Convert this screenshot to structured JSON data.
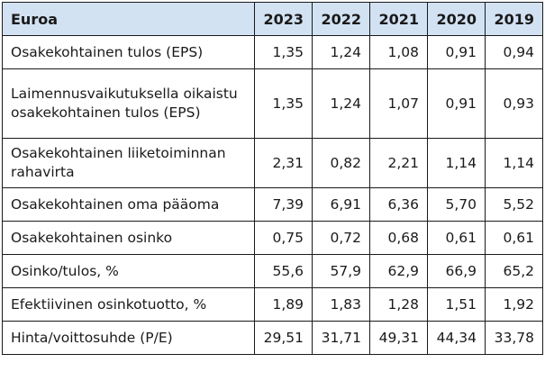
{
  "table": {
    "header": {
      "label": "Euroa",
      "years": [
        "2023",
        "2022",
        "2021",
        "2020",
        "2019"
      ]
    },
    "rows": [
      {
        "label": "Osakekohtainen tulos (EPS)",
        "values": [
          "1,35",
          "1,24",
          "1,08",
          "0,91",
          "0,94"
        ]
      },
      {
        "label": "Laimennusvaikutuksella oikaistu osakekohtainen tulos (EPS)",
        "values": [
          "1,35",
          "1,24",
          "1,07",
          "0,91",
          "0,93"
        ]
      },
      {
        "label": "Osakekohtainen liiketoiminnan rahavirta",
        "values": [
          "2,31",
          "0,82",
          "2,21",
          "1,14",
          "1,14"
        ]
      },
      {
        "label": "Osakekohtainen oma pääoma",
        "values": [
          "7,39",
          "6,91",
          "6,36",
          "5,70",
          "5,52"
        ]
      },
      {
        "label": "Osakekohtainen osinko",
        "values": [
          "0,75",
          "0,72",
          "0,68",
          "0,61",
          "0,61"
        ]
      },
      {
        "label": "Osinko/tulos, %",
        "values": [
          "55,6",
          "57,9",
          "62,9",
          "66,9",
          "65,2"
        ]
      },
      {
        "label": "Efektiivinen osinkotuotto, %",
        "values": [
          "1,89",
          "1,83",
          "1,28",
          "1,51",
          "1,92"
        ]
      },
      {
        "label": "Hinta/voittosuhde (P/E)",
        "values": [
          "29,51",
          "31,71",
          "49,31",
          "44,34",
          "33,78"
        ]
      }
    ],
    "colors": {
      "header_bg": "#d2e2f3",
      "border": "#1a1a1a",
      "text": "#1a1a1a"
    }
  }
}
